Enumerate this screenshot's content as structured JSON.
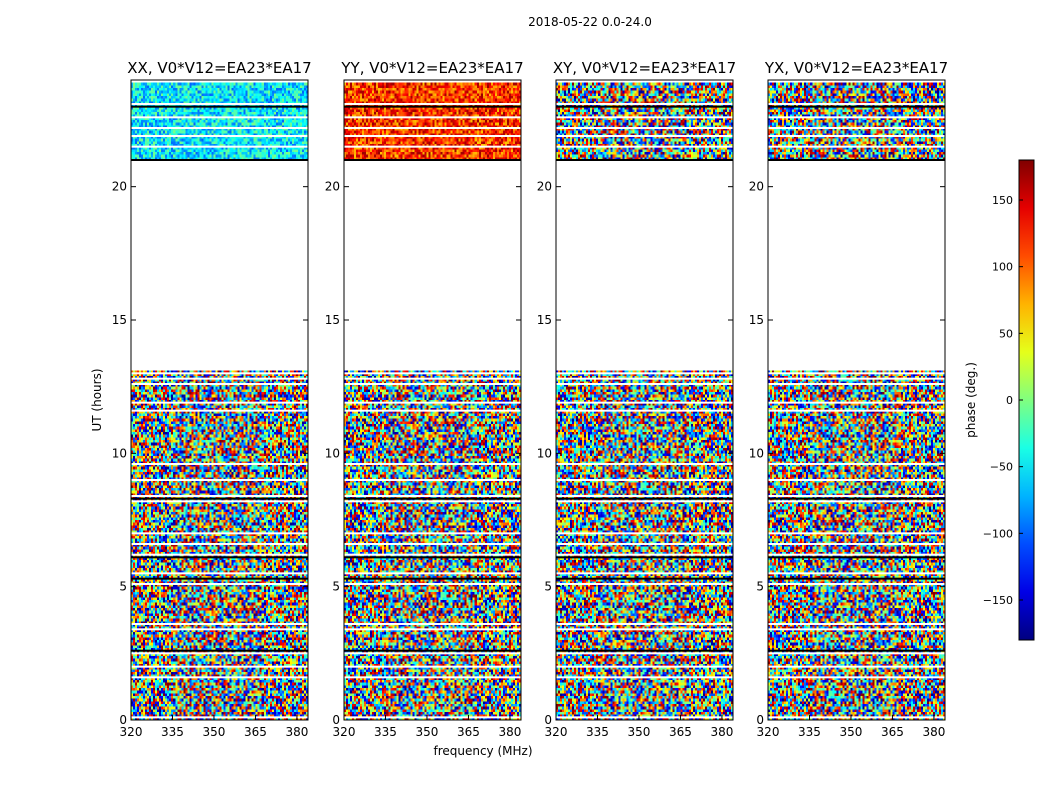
{
  "figure": {
    "suptitle": "2018-05-22 0.0-24.0",
    "xlabel": "frequency (MHz)",
    "ylabel": "UT (hours)"
  },
  "chart_data": {
    "type": "heatmap",
    "colormap": "jet",
    "x": {
      "label": "frequency (MHz)",
      "unit": "MHz",
      "range": [
        320,
        384
      ],
      "ticks": [
        320,
        335,
        350,
        365,
        380
      ]
    },
    "y": {
      "label": "UT (hours)",
      "unit": "hours",
      "range": [
        0,
        24
      ],
      "ticks": [
        0,
        5,
        10,
        15,
        20
      ]
    },
    "colorbar": {
      "label": "phase (deg.)",
      "range": [
        -180,
        180
      ],
      "ticks": [
        -150,
        -100,
        -50,
        0,
        50,
        100,
        150
      ]
    },
    "data_coverage_ut": [
      [
        0.0,
        13.1
      ],
      [
        21.0,
        23.9
      ]
    ],
    "panels": [
      {
        "title": "XX, V0*V12=EA23*EA17",
        "pol": "XX",
        "tint": "cool",
        "shows_ylabel": true,
        "shows_xlabel": false
      },
      {
        "title": "YY, V0*V12=EA23*EA17",
        "pol": "YY",
        "tint": "warm",
        "shows_ylabel": false,
        "shows_xlabel": true
      },
      {
        "title": "XY, V0*V12=EA23*EA17",
        "pol": "XY",
        "tint": "random",
        "shows_ylabel": false,
        "shows_xlabel": false
      },
      {
        "title": "YX, V0*V12=EA23*EA17",
        "pol": "YX",
        "tint": "random",
        "shows_ylabel": false,
        "shows_xlabel": false
      }
    ]
  }
}
